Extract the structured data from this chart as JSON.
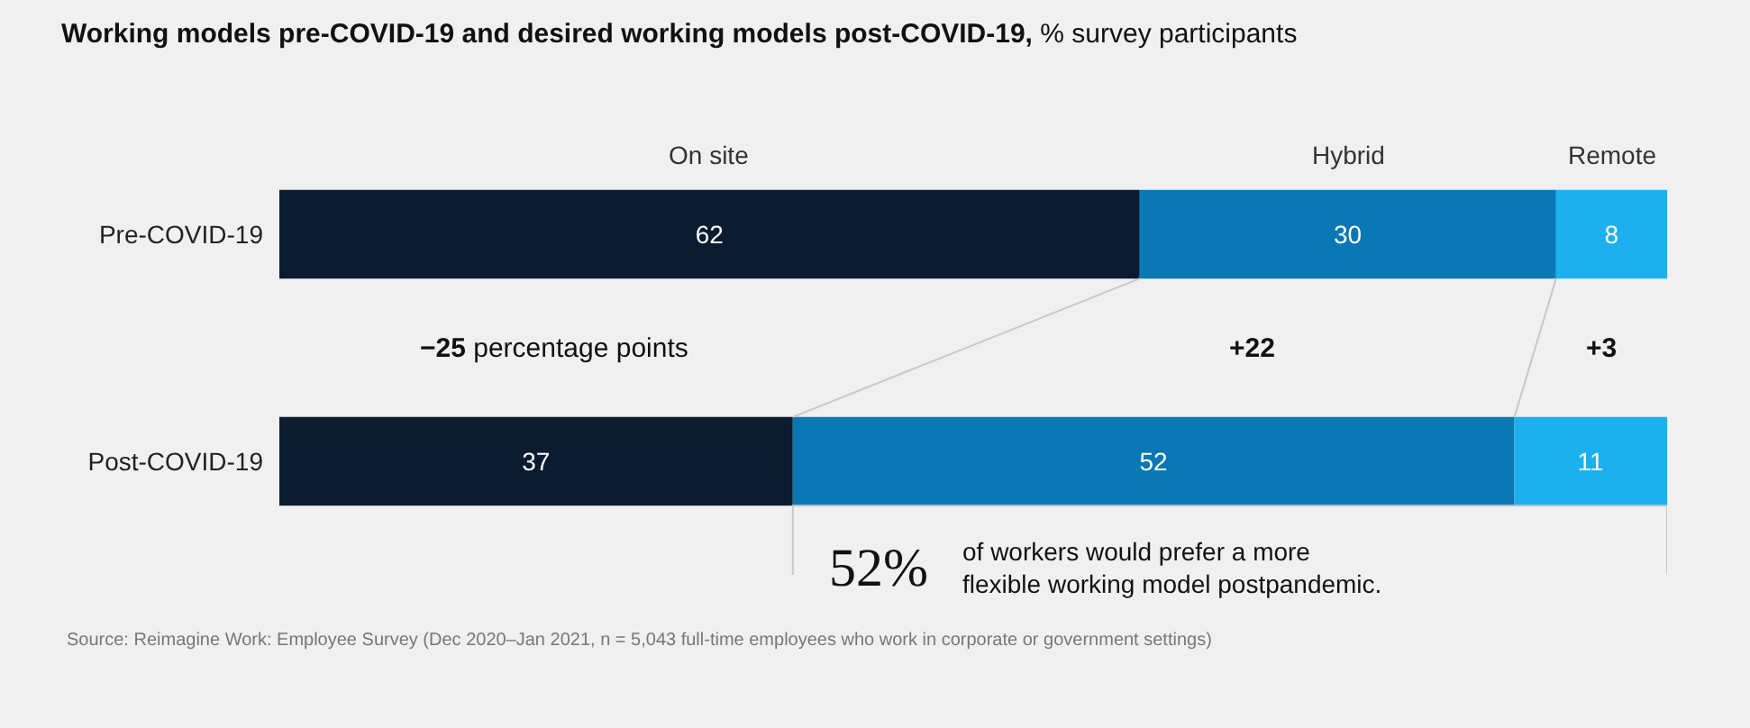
{
  "chart_data": {
    "type": "bar",
    "orientation": "horizontal",
    "stacked": true,
    "title": "Working models pre-COVID-19 and desired working models post-COVID-19,",
    "subtitle": "% survey participants",
    "categories": [
      "Pre-COVID-19",
      "Post-COVID-19"
    ],
    "series": [
      {
        "name": "On site",
        "color": "#0b1b30",
        "values": [
          62,
          37
        ]
      },
      {
        "name": "Hybrid",
        "color": "#0a78b4",
        "values": [
          30,
          52
        ]
      },
      {
        "name": "Remote",
        "color": "#1cb0ee",
        "values": [
          8,
          11
        ]
      }
    ],
    "xlim": [
      0,
      100
    ],
    "tick_labels": "y",
    "data_labels": true,
    "legend": false,
    "grid": false,
    "annotations": [
      "−25 percentage points",
      "+22",
      "+3",
      "52% of workers would prefer a more flexible working model postpandemic.",
      "Source: Reimagine Work: Employee Survey (Dec 2020–Jan 2021, n = 5,043 full-time employees who work in corporate or government settings)"
    ]
  }
}
